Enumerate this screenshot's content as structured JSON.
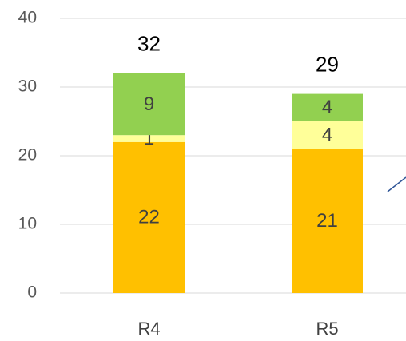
{
  "chart_data": {
    "type": "stacked_bar",
    "categories": [
      "R4",
      "R5"
    ],
    "series": [
      {
        "color": "#ffc000",
        "values": [
          22,
          21
        ]
      },
      {
        "color": "#ffff99",
        "values": [
          1,
          4
        ]
      },
      {
        "color": "#92d050",
        "values": [
          9,
          4
        ]
      }
    ],
    "total_labels": [
      32,
      29
    ],
    "ylim": [
      0,
      40
    ],
    "yticks": [
      0,
      10,
      20,
      30,
      40
    ],
    "grid": true
  }
}
